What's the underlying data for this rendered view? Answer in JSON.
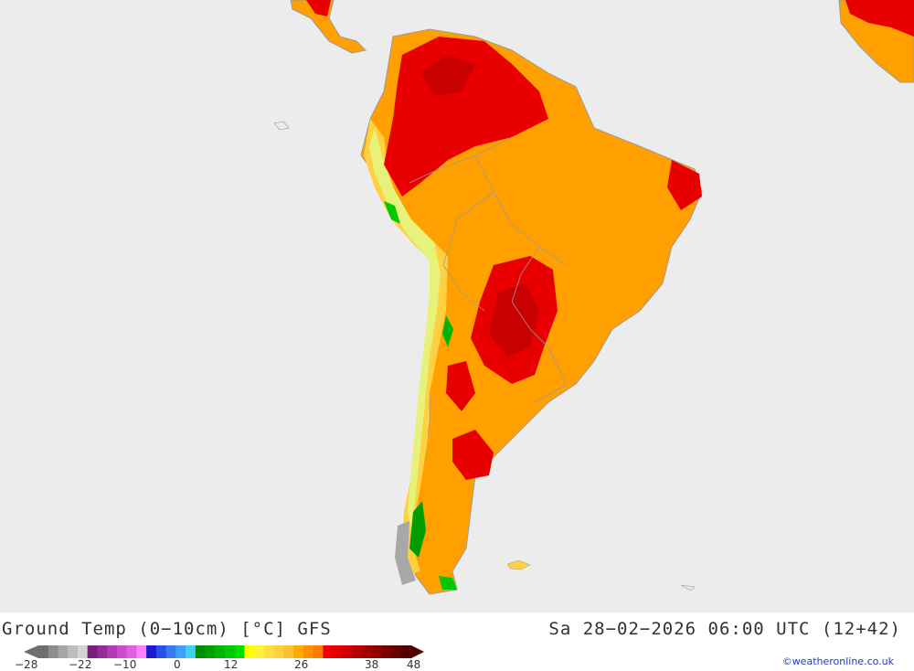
{
  "map": {
    "region": "South America",
    "background_color": "#ececec",
    "land_color_classes": {
      "hot_dark": "#c80000",
      "hot": "#e80000",
      "warm": "#f08a00",
      "warm_light": "#ffa000",
      "mild": "#ffc800",
      "cool": "#e6f27a",
      "cold_green": "#00b400",
      "snow_gray": "#a8a8a8"
    }
  },
  "header": {
    "title_left": "Ground Temp (0−10cm) [°C] GFS",
    "title_right": "Sa 28−02−2026 06:00 UTC (12+42)"
  },
  "legend": {
    "colors": [
      "#6e6e6e",
      "#8c8c8c",
      "#a6a6a6",
      "#bdbdbd",
      "#d4d4d4",
      "#7a1f7a",
      "#962b96",
      "#b23ab2",
      "#cc4ccc",
      "#e05fe0",
      "#ff80ff",
      "#1a1acc",
      "#2a4fe6",
      "#3a7af0",
      "#3fa0f5",
      "#3fd0f5",
      "#008c00",
      "#00a000",
      "#00b400",
      "#00c800",
      "#00dc00",
      "#ffff00",
      "#fff03a",
      "#ffe040",
      "#ffd040",
      "#ffc030",
      "#ffa800",
      "#ff9000",
      "#ff7a00",
      "#f00000",
      "#e00000",
      "#cc0000",
      "#b40000",
      "#a00000",
      "#8c0000",
      "#780000",
      "#640000",
      "#500000"
    ],
    "ticks": [
      "−28",
      "−22",
      "−10",
      "0",
      "12",
      "26",
      "38",
      "48"
    ]
  },
  "credit": "©weatheronline.co.uk"
}
